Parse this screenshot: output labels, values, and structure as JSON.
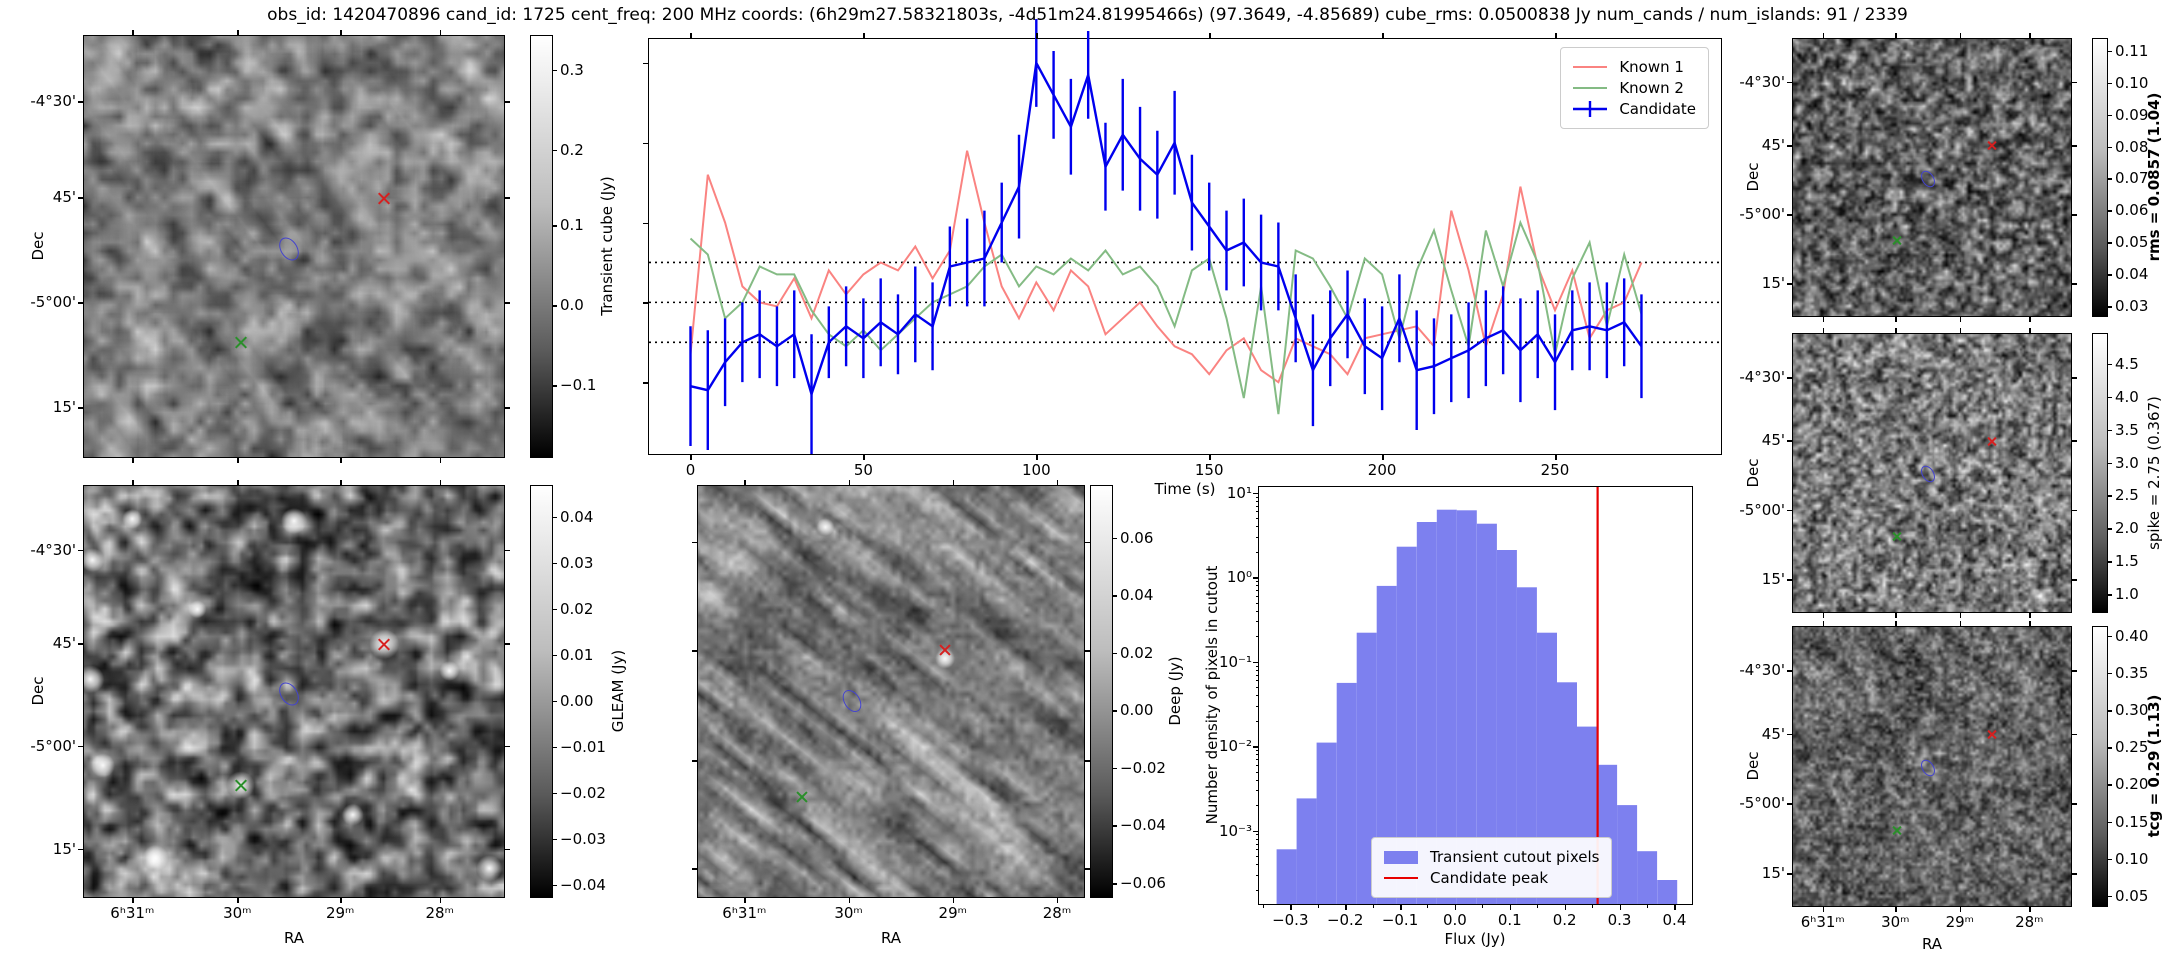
{
  "title": "obs_id: 1420470896 cand_id: 1725 cent_freq: 200 MHz coords: (6h29m27.58321803s, -4d51m24.81995466s) (97.3649, -4.85689) cube_rms: 0.0500838 Jy num_cands / num_islands: 91 / 2339",
  "axes": {
    "dec_label": "Dec",
    "ra_label": "RA",
    "dec_tick_labels": [
      "-4°30'",
      "45'",
      "-5°00'",
      "15'"
    ],
    "ra_tick_labels": [
      "6ʰ31ᵐ",
      "30ᵐ",
      "29ᵐ",
      "28ᵐ"
    ]
  },
  "colorbars": {
    "transient": {
      "label": "Transient cube (Jy)",
      "ticks": [
        "0.3",
        "0.2",
        "0.1",
        "0.0",
        "−0.1"
      ],
      "bold": false
    },
    "gleam": {
      "label": "GLEAM (Jy)",
      "ticks": [
        "0.04",
        "0.03",
        "0.02",
        "0.01",
        "0.00",
        "−0.01",
        "−0.02",
        "−0.03",
        "−0.04"
      ],
      "bold": false
    },
    "deep": {
      "label": "Deep (Jy)",
      "ticks": [
        "0.06",
        "0.04",
        "0.02",
        "0.00",
        "−0.02",
        "−0.04",
        "−0.06"
      ],
      "bold": false
    },
    "rms": {
      "label": "rms = 0.0857 (1.04)",
      "ticks": [
        "0.11",
        "0.10",
        "0.09",
        "0.08",
        "0.07",
        "0.06",
        "0.05",
        "0.04",
        "0.03"
      ],
      "bold": true
    },
    "spike": {
      "label": "spike = 2.75 (0.367)",
      "ticks": [
        "4.5",
        "4.0",
        "3.5",
        "3.0",
        "2.5",
        "2.0",
        "1.5",
        "1.0"
      ],
      "bold": false
    },
    "tcg": {
      "label": "tcg = 0.29 (1.13)",
      "ticks": [
        "0.40",
        "0.35",
        "0.30",
        "0.25",
        "0.20",
        "0.15",
        "0.10",
        "0.05"
      ],
      "bold": true
    }
  },
  "markers": {
    "red_x_color": "#d62020",
    "green_x_color": "#2a8f2a",
    "contour_color": "#4343cf"
  },
  "chart_data": [
    {
      "type": "line",
      "title": "",
      "xlabel": "Time (s)",
      "ylabel": "Transient cube (Jy)",
      "xlim": [
        -12,
        298
      ],
      "ylim": [
        -0.19,
        0.33
      ],
      "x_ticks": [
        0,
        50,
        100,
        150,
        200,
        250
      ],
      "y_ticks": [
        0.3,
        0.2,
        0.1,
        0.0,
        -0.1
      ],
      "hlines": [
        0.05,
        0.0,
        -0.05
      ],
      "grid": false,
      "legend_position": "upper right",
      "x": [
        0,
        5,
        10,
        15,
        20,
        25,
        30,
        35,
        40,
        45,
        50,
        55,
        60,
        65,
        70,
        75,
        80,
        85,
        90,
        95,
        100,
        105,
        110,
        115,
        120,
        125,
        130,
        135,
        140,
        145,
        150,
        155,
        160,
        165,
        170,
        175,
        180,
        185,
        190,
        195,
        200,
        205,
        210,
        215,
        220,
        225,
        230,
        235,
        240,
        245,
        250,
        255,
        260,
        265,
        270,
        275
      ],
      "series": [
        {
          "name": "Known 1",
          "color": "#fa8381",
          "values": [
            -0.065,
            0.16,
            0.1,
            0.02,
            0.0,
            -0.005,
            0.03,
            -0.02,
            0.04,
            0.01,
            0.035,
            0.05,
            0.04,
            0.07,
            0.03,
            0.065,
            0.19,
            0.1,
            0.02,
            -0.02,
            0.025,
            -0.01,
            0.04,
            0.02,
            -0.04,
            -0.02,
            0.0,
            -0.03,
            -0.055,
            -0.065,
            -0.09,
            -0.06,
            -0.045,
            -0.085,
            -0.1,
            -0.045,
            -0.055,
            -0.065,
            -0.09,
            -0.045,
            -0.04,
            -0.035,
            -0.03,
            -0.055,
            0.115,
            0.04,
            -0.055,
            0.01,
            0.145,
            0.045,
            -0.01,
            0.04,
            -0.045,
            -0.01,
            0.0,
            0.05
          ]
        },
        {
          "name": "Known 2",
          "color": "#84bb84",
          "values": [
            0.08,
            0.06,
            -0.02,
            0.0,
            0.045,
            0.035,
            0.035,
            -0.01,
            -0.04,
            -0.055,
            -0.035,
            -0.06,
            -0.04,
            -0.02,
            0.0,
            0.01,
            0.02,
            0.045,
            0.06,
            0.02,
            0.045,
            0.035,
            0.055,
            0.04,
            0.065,
            0.035,
            0.045,
            0.02,
            -0.03,
            0.04,
            0.055,
            -0.02,
            -0.12,
            0.02,
            -0.14,
            0.065,
            0.055,
            0.02,
            -0.02,
            0.055,
            0.035,
            -0.045,
            0.04,
            0.09,
            0.015,
            -0.055,
            0.09,
            0.02,
            0.1,
            0.05,
            -0.065,
            0.03,
            0.075,
            -0.03,
            0.06,
            -0.015
          ]
        },
        {
          "name": "Candidate",
          "color": "#0000ee",
          "values": [
            -0.105,
            -0.11,
            -0.075,
            -0.05,
            -0.04,
            -0.055,
            -0.04,
            -0.115,
            -0.05,
            -0.03,
            -0.045,
            -0.025,
            -0.04,
            -0.015,
            -0.03,
            0.045,
            0.05,
            0.055,
            0.1,
            0.145,
            0.3,
            0.26,
            0.22,
            0.285,
            0.17,
            0.21,
            0.18,
            0.16,
            0.2,
            0.125,
            0.095,
            0.065,
            0.075,
            0.05,
            0.045,
            -0.02,
            -0.085,
            -0.045,
            -0.015,
            -0.055,
            -0.07,
            -0.02,
            -0.085,
            -0.08,
            -0.07,
            -0.06,
            -0.045,
            -0.035,
            -0.06,
            -0.04,
            -0.075,
            -0.035,
            -0.03,
            -0.035,
            -0.025,
            -0.055
          ],
          "errors": [
            0.075,
            0.075,
            0.055,
            0.05,
            0.055,
            0.05,
            0.055,
            0.075,
            0.045,
            0.05,
            0.05,
            0.055,
            0.05,
            0.06,
            0.055,
            0.05,
            0.055,
            0.06,
            0.05,
            0.065,
            0.055,
            0.055,
            0.06,
            0.055,
            0.055,
            0.07,
            0.065,
            0.055,
            0.065,
            0.06,
            0.055,
            0.05,
            0.055,
            0.06,
            0.055,
            0.055,
            0.07,
            0.06,
            0.055,
            0.06,
            0.065,
            0.055,
            0.075,
            0.06,
            0.055,
            0.06,
            0.06,
            0.055,
            0.065,
            0.055,
            0.06,
            0.05,
            0.055,
            0.06,
            0.055,
            0.065
          ]
        }
      ]
    },
    {
      "type": "bar",
      "title": "",
      "xlabel": "Flux (Jy)",
      "ylabel": "Number density of pixels in cutout",
      "y_scale": "log",
      "xlim": [
        -0.357,
        0.432
      ],
      "ylim": [
        0.000135,
        11.7
      ],
      "x_ticks": [
        -0.3,
        -0.2,
        -0.1,
        0.0,
        0.1,
        0.2,
        0.3,
        0.4
      ],
      "x_tick_labels": [
        "−0.3",
        "−0.2",
        "−0.1",
        "0.0",
        "0.1",
        "0.2",
        "0.3",
        "0.4"
      ],
      "y_tick_labels": [
        "10¹",
        "10⁰",
        "10⁻¹",
        "10⁻²",
        "10⁻³"
      ],
      "y_tick_values": [
        10,
        1,
        0.1,
        0.01,
        0.001
      ],
      "bar_color": "#7d80ef",
      "bin_start": -0.325,
      "bin_width": 0.0365,
      "values": [
        0.0006,
        0.0024,
        0.011,
        0.056,
        0.22,
        0.79,
        2.3,
        4.5,
        6.3,
        6.2,
        4.3,
        2.1,
        0.76,
        0.22,
        0.057,
        0.017,
        0.006,
        0.002,
        0.00057,
        0.00026
      ],
      "vline": {
        "x": 0.26,
        "color": "#e80000"
      },
      "legend": [
        "Transient cutout pixels",
        "Candidate peak"
      ]
    }
  ]
}
